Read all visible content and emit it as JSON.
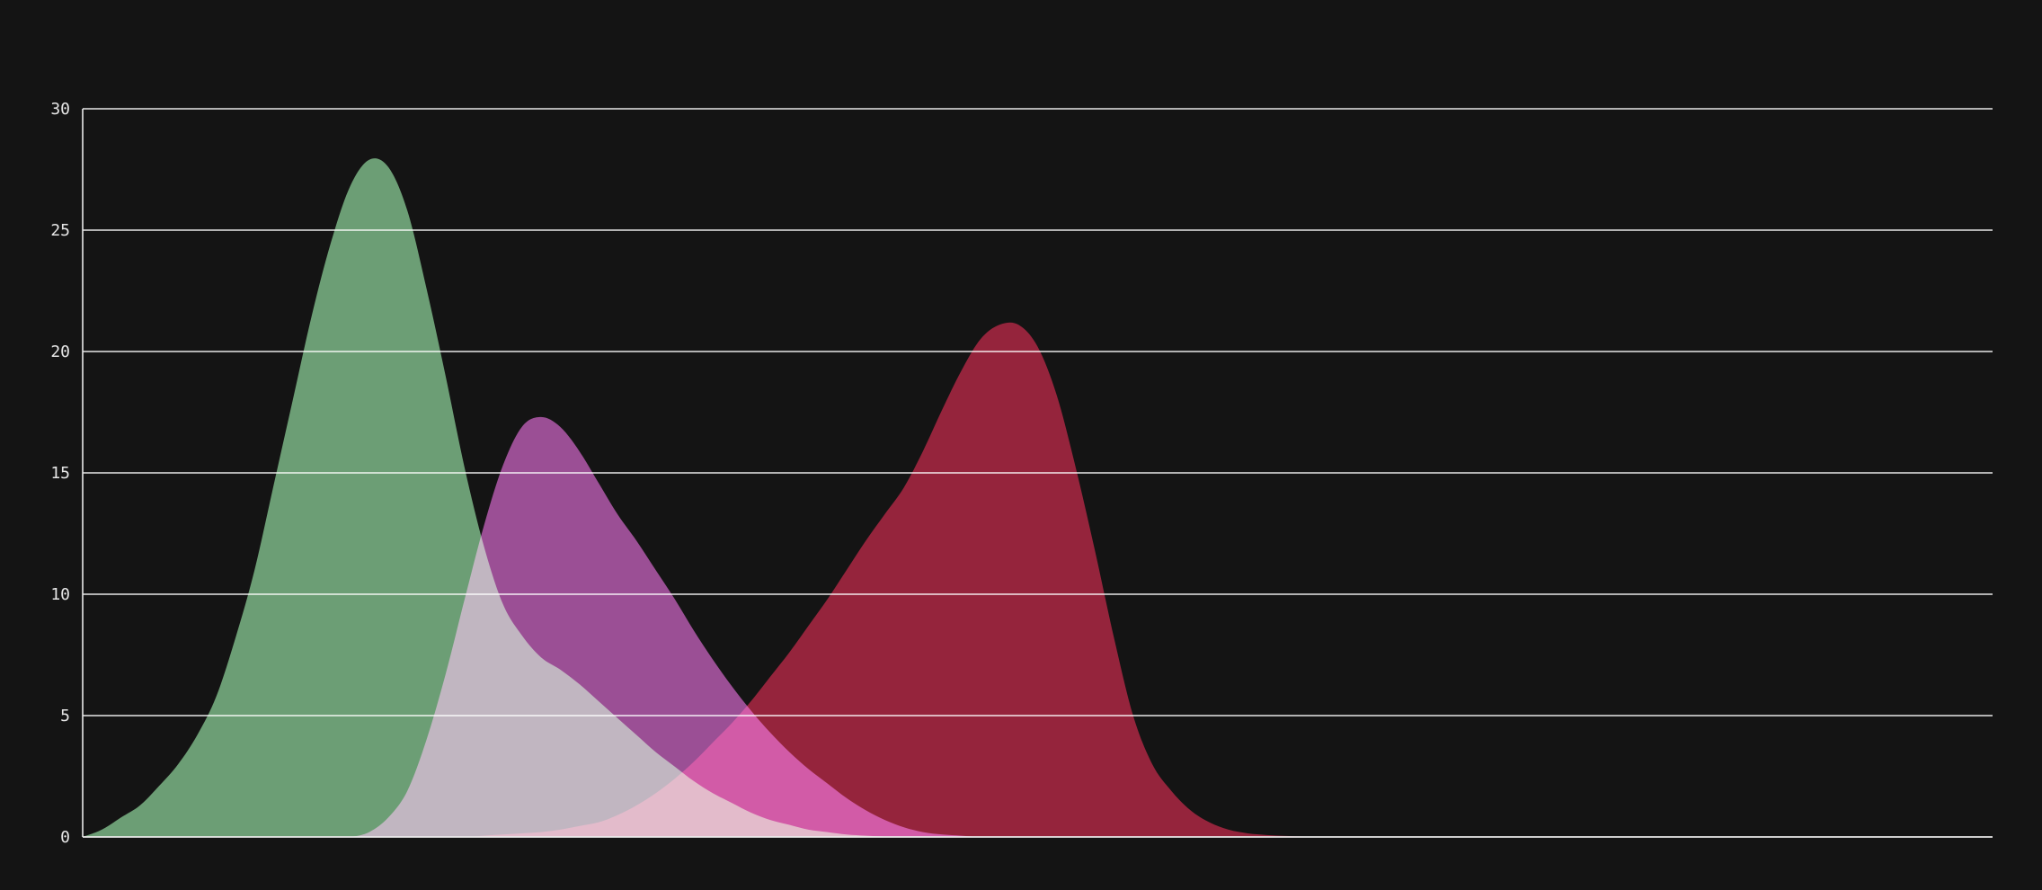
{
  "chart_data": {
    "type": "area",
    "title": "",
    "xlabel": "",
    "ylabel": "",
    "ylim": [
      0,
      30
    ],
    "yticks": [
      0,
      5,
      10,
      15,
      20,
      25,
      30
    ],
    "grid": true,
    "legend": "none",
    "x": [
      0,
      1,
      2,
      3,
      4,
      5,
      6,
      7,
      8,
      9,
      10,
      11,
      12,
      13,
      14,
      15,
      16,
      17,
      18,
      19,
      20,
      21,
      22,
      23,
      24,
      25,
      26,
      27,
      28,
      29,
      30,
      31,
      32,
      33,
      34,
      35,
      36,
      37,
      38,
      39,
      40,
      41,
      42,
      43,
      44,
      45,
      46,
      47,
      48,
      49,
      50,
      51,
      52,
      53,
      54,
      55,
      56,
      57,
      58,
      59,
      60,
      61,
      62,
      63,
      64,
      65,
      66,
      67,
      68,
      69,
      70,
      71,
      72,
      73,
      74,
      75,
      76,
      77,
      78,
      79,
      80,
      81,
      82,
      83,
      84,
      85,
      86,
      87,
      88,
      89,
      90,
      91,
      92,
      93,
      94,
      95,
      96,
      97,
      98,
      99,
      100
    ],
    "series": [
      {
        "color": "#6aa674",
        "values": [
          0,
          0.3,
          0.8,
          1.3,
          2.1,
          3.0,
          4.2,
          5.8,
          8.2,
          11.0,
          14.5,
          18.0,
          21.5,
          24.5,
          26.8,
          27.9,
          27.6,
          25.8,
          22.6,
          19.0,
          15.2,
          12.0,
          9.6,
          8.3,
          7.4,
          6.9,
          6.3,
          5.6,
          4.9,
          4.2,
          3.5,
          2.9,
          2.3,
          1.8,
          1.4,
          1.0,
          0.7,
          0.5,
          0.3,
          0.2,
          0.1,
          0.05,
          0.02,
          0,
          0,
          0,
          0,
          0,
          0,
          0,
          0,
          0,
          0,
          0,
          0,
          0,
          0,
          0,
          0,
          0,
          0,
          0,
          0,
          0,
          0,
          0,
          0,
          0,
          0,
          0,
          0,
          0,
          0,
          0,
          0,
          0,
          0,
          0,
          0,
          0,
          0,
          0,
          0,
          0,
          0,
          0,
          0,
          0,
          0,
          0,
          0,
          0,
          0,
          0,
          0,
          0,
          0,
          0,
          0,
          0,
          0
        ]
      },
      {
        "color": "#a3479b",
        "values": [
          0,
          0,
          0,
          0,
          0,
          0,
          0,
          0,
          0,
          0,
          0,
          0,
          0,
          0,
          0,
          0.2,
          0.8,
          1.9,
          4.0,
          6.7,
          9.8,
          12.8,
          15.3,
          16.9,
          17.3,
          16.9,
          15.9,
          14.6,
          13.3,
          12.2,
          11.0,
          9.8,
          8.5,
          7.3,
          6.2,
          5.2,
          4.3,
          3.5,
          2.8,
          2.2,
          1.6,
          1.1,
          0.7,
          0.4,
          0.2,
          0.1,
          0.05,
          0,
          0,
          0,
          0,
          0,
          0,
          0,
          0,
          0,
          0,
          0,
          0,
          0,
          0,
          0,
          0,
          0,
          0,
          0,
          0,
          0,
          0,
          0,
          0,
          0,
          0,
          0,
          0,
          0,
          0,
          0,
          0,
          0,
          0,
          0,
          0,
          0,
          0,
          0,
          0,
          0,
          0,
          0,
          0,
          0,
          0,
          0,
          0,
          0,
          0,
          0,
          0,
          0,
          0
        ]
      },
      {
        "color": "#9b1330",
        "values": [
          0,
          0,
          0,
          0,
          0,
          0,
          0,
          0,
          0,
          0,
          0,
          0,
          0,
          0,
          0,
          0,
          0,
          0,
          0,
          0,
          0,
          0.05,
          0.1,
          0.15,
          0.2,
          0.3,
          0.45,
          0.6,
          0.9,
          1.3,
          1.8,
          2.4,
          3.1,
          3.9,
          4.7,
          5.6,
          6.6,
          7.6,
          8.7,
          9.8,
          11.0,
          12.2,
          13.3,
          14.4,
          15.9,
          17.6,
          19.2,
          20.5,
          21.1,
          21.1,
          20.2,
          18.2,
          15.2,
          11.8,
          8.2,
          5.0,
          3.0,
          1.9,
          1.1,
          0.6,
          0.3,
          0.15,
          0.08,
          0.04,
          0.02,
          0.01,
          0,
          0,
          0,
          0,
          0,
          0,
          0,
          0,
          0,
          0,
          0,
          0,
          0,
          0,
          0,
          0,
          0,
          0,
          0,
          0,
          0,
          0,
          0,
          0,
          0,
          0,
          0,
          0,
          0,
          0,
          0,
          0,
          0,
          0,
          0
        ]
      }
    ]
  }
}
